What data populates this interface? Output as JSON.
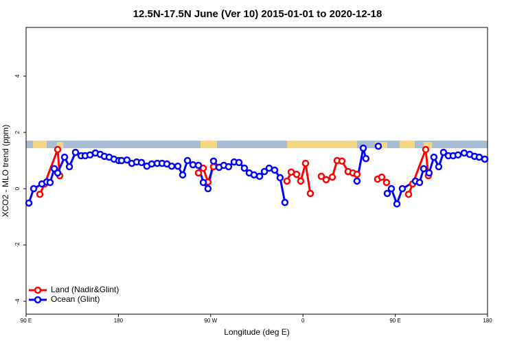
{
  "chart_data": {
    "type": "line",
    "title": "12.5N-17.5N June (Ver 10)   2015-01-01 to 2020-12-18",
    "x_label": "Longitude (deg E)",
    "y_label": "XCO2 - MLO trend (ppm)",
    "xlim": [
      90,
      540
    ],
    "xticks": [
      {
        "value": 90,
        "label": "90 E"
      },
      180,
      {
        "value": 270,
        "label": "90 W"
      },
      {
        "value": 360,
        "label": "0"
      },
      {
        "value": 450,
        "label": "90 E"
      },
      {
        "value": 540,
        "label": "180"
      }
    ],
    "ylim": [
      -4.46,
      5.73
    ],
    "yticks": [
      -4,
      -2,
      0,
      2,
      4
    ],
    "legend": "bottom-left",
    "series": [
      {
        "name": "Land (Nadir&Glint)",
        "color": "#ff0000",
        "x": [
          103.4,
          108.1,
          120.8,
          122.8,
          null,
          258.1,
          262.8,
          267.4,
          272.8,
          null,
          344.4,
          348.5,
          353.8,
          357.8,
          362.5,
          367.2,
          null,
          377.9,
          382.6,
          388.6,
          393.3,
          398.0,
          404.0,
          408.7,
          412.7,
          null,
          432.8,
          436.8,
          441.5,
          null,
          463.0,
          467.0,
          479.7,
          482.3
        ],
        "values": [
          -0.2,
          0.17,
          1.39,
          0.46,
          null,
          0.56,
          0.73,
          0.24,
          0.78,
          null,
          0.27,
          0.59,
          0.51,
          0.27,
          0.9,
          -0.17,
          null,
          0.44,
          0.32,
          0.41,
          1.0,
          0.98,
          0.61,
          0.56,
          0.51,
          null,
          0.34,
          0.41,
          0.22,
          null,
          -0.2,
          0.17,
          1.39,
          0.46
        ]
      },
      {
        "name": "Ocean (Glint)",
        "color": "#0000ff",
        "x": [
          92.7,
          97.4,
          105.4,
          110.1,
          113.4,
          117.5,
          120.8,
          127.5,
          132.2,
          138.2,
          143.6,
          147.6,
          152.3,
          157.6,
          162.3,
          166.3,
          171.0,
          175.7,
          180.4,
          183.1,
          188.4,
          193.1,
          197.8,
          202.5,
          207.8,
          212.5,
          217.9,
          222.6,
          227.3,
          232.0,
          238.0,
          242.7,
          247.4,
          252.7,
          258.1,
          262.8,
          267.4,
          272.8,
          278.2,
          282.8,
          287.5,
          292.9,
          297.6,
          302.9,
          307.6,
          312.3,
          317.7,
          322.4,
          327.0,
          332.4,
          337.7,
          342.4,
          null,
          412.7,
          418.8,
          421.4,
          null,
          433.5,
          null,
          442.2,
          446.2,
          451.6,
          456.9,
          469.7,
          473.7,
          477.7,
          483.0,
          487.7,
          492.4,
          497.1,
          501.8,
          506.5,
          511.2,
          517.2,
          522.6,
          527.3,
          531.9,
          537.3
        ],
        "values": [
          -0.51,
          0,
          0.17,
          0.24,
          0.22,
          0.71,
          0.56,
          1.12,
          0.78,
          1.29,
          1.17,
          1.17,
          1.2,
          1.27,
          1.22,
          1.15,
          1.12,
          1.05,
          1.0,
          1.0,
          1.02,
          0.9,
          0.95,
          0.93,
          0.8,
          0.88,
          0.9,
          0.9,
          0.88,
          0.8,
          0.8,
          0.49,
          1.0,
          0.85,
          0.83,
          0.22,
          0,
          0.98,
          0.76,
          0.83,
          0.78,
          0.95,
          0.93,
          0.73,
          0.56,
          0.49,
          0.44,
          0.61,
          0.73,
          0.66,
          0.39,
          -0.49,
          null,
          0.27,
          1.44,
          1.07,
          null,
          1.51,
          null,
          -0.17,
          0,
          -0.54,
          0,
          0.27,
          0.22,
          0.71,
          0.56,
          1.12,
          0.78,
          1.29,
          1.17,
          1.17,
          1.2,
          1.27,
          1.22,
          1.15,
          1.12,
          1.05
        ]
      }
    ]
  }
}
